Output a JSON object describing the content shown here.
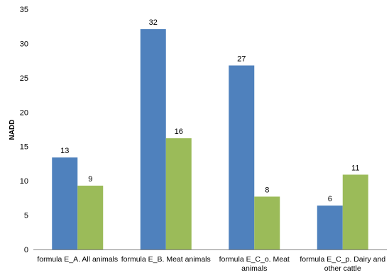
{
  "chart_data": {
    "type": "bar",
    "title": "",
    "xlabel": "",
    "ylabel": "NADD",
    "ylim": [
      0,
      35
    ],
    "yticks": [
      0,
      5,
      10,
      15,
      20,
      25,
      30,
      35
    ],
    "grid": false,
    "legend": "none",
    "categories": [
      [
        "formula E_A. All animals"
      ],
      [
        "formula E_B. Meat animals"
      ],
      [
        "formula E_C_o. Meat",
        "animals"
      ],
      [
        "formula E_C_p. Dairy and",
        "other cattle"
      ]
    ],
    "series": [
      {
        "values": [
          13.4,
          32.1,
          26.8,
          6.4
        ],
        "labels": [
          "13",
          "32",
          "27",
          "6"
        ],
        "color": "#4f81bd"
      },
      {
        "values": [
          9.3,
          16.2,
          7.7,
          10.9
        ],
        "labels": [
          "9",
          "16",
          "8",
          "11"
        ],
        "color": "#9bbb59"
      }
    ]
  }
}
